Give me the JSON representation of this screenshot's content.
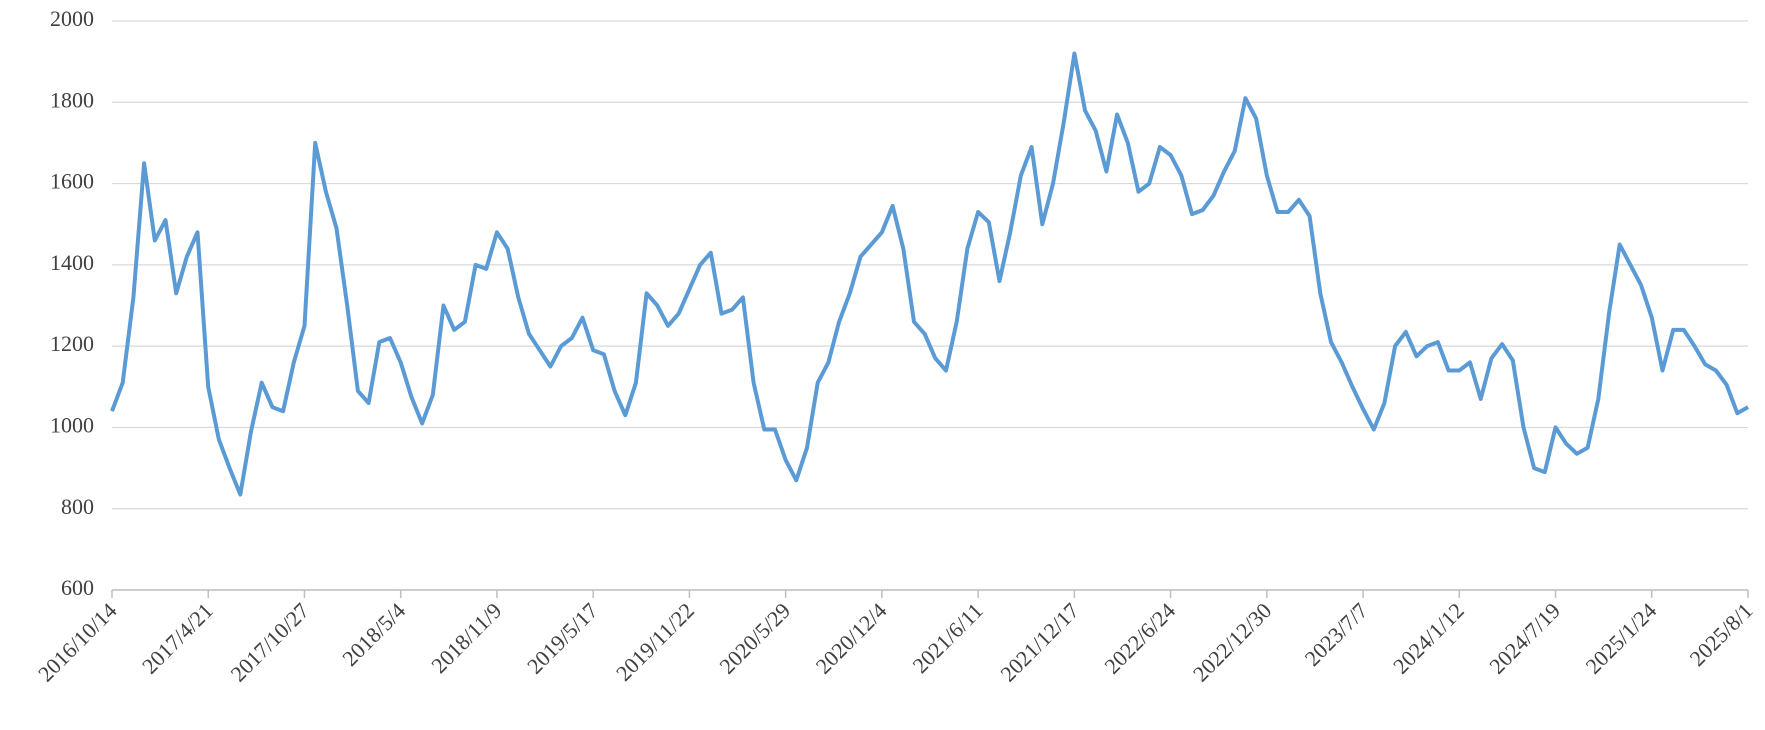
{
  "chart_data": {
    "type": "line",
    "categories": [
      "2016/10/14",
      null,
      null,
      null,
      null,
      null,
      null,
      null,
      null,
      "2017/4/21",
      null,
      null,
      null,
      null,
      null,
      null,
      null,
      null,
      "2017/10/27",
      null,
      null,
      null,
      null,
      null,
      null,
      null,
      null,
      "2018/5/4",
      null,
      null,
      null,
      null,
      null,
      null,
      null,
      null,
      "2018/11/9",
      null,
      null,
      null,
      null,
      null,
      null,
      null,
      null,
      "2019/5/17",
      null,
      null,
      null,
      null,
      null,
      null,
      null,
      null,
      "2019/11/22",
      null,
      null,
      null,
      null,
      null,
      null,
      null,
      null,
      "2020/5/29",
      null,
      null,
      null,
      null,
      null,
      null,
      null,
      null,
      "2020/12/4",
      null,
      null,
      null,
      null,
      null,
      null,
      null,
      null,
      "2021/6/11",
      null,
      null,
      null,
      null,
      null,
      null,
      null,
      null,
      "2021/12/17",
      null,
      null,
      null,
      null,
      null,
      null,
      null,
      null,
      "2022/6/24",
      null,
      null,
      null,
      null,
      null,
      null,
      null,
      null,
      "2022/12/30",
      null,
      null,
      null,
      null,
      null,
      null,
      null,
      null,
      "2023/7/7",
      null,
      null,
      null,
      null,
      null,
      null,
      null,
      null,
      "2024/1/12",
      null,
      null,
      null,
      null,
      null,
      null,
      null,
      null,
      "2024/7/19",
      null,
      null,
      null,
      null,
      null,
      null,
      null,
      null,
      "2025/1/24",
      null,
      null,
      null,
      null,
      null,
      null,
      null,
      null,
      "2025/8/1"
    ],
    "series": [
      {
        "color": "#5b9bd5",
        "values": [
          1040,
          1110,
          1320,
          1650,
          1460,
          1510,
          1330,
          1420,
          1480,
          1100,
          970,
          900,
          835,
          990,
          1110,
          1050,
          1040,
          1160,
          1250,
          1700,
          1580,
          1490,
          1300,
          1090,
          1060,
          1210,
          1220,
          1160,
          1075,
          1010,
          1080,
          1300,
          1240,
          1260,
          1400,
          1390,
          1480,
          1440,
          1320,
          1230,
          1190,
          1150,
          1200,
          1220,
          1270,
          1190,
          1180,
          1090,
          1030,
          1110,
          1330,
          1300,
          1250,
          1280,
          1340,
          1400,
          1430,
          1280,
          1290,
          1320,
          1110,
          995,
          995,
          920,
          870,
          950,
          1110,
          1160,
          1260,
          1330,
          1420,
          1450,
          1480,
          1545,
          1440,
          1260,
          1230,
          1170,
          1140,
          1260,
          1440,
          1530,
          1505,
          1360,
          1480,
          1620,
          1690,
          1500,
          1600,
          1750,
          1920,
          1780,
          1730,
          1630,
          1770,
          1700,
          1580,
          1600,
          1690,
          1670,
          1620,
          1525,
          1535,
          1570,
          1630,
          1680,
          1810,
          1760,
          1620,
          1530,
          1530,
          1560,
          1520,
          1330,
          1210,
          1160,
          1100,
          1045,
          995,
          1060,
          1200,
          1235,
          1175,
          1200,
          1210,
          1140,
          1140,
          1160,
          1070,
          1170,
          1205,
          1165,
          1000,
          900,
          890,
          1000,
          960,
          935,
          950,
          1070,
          1280,
          1450,
          1400,
          1350,
          1270,
          1140,
          1240,
          1240,
          1200,
          1155,
          1140,
          1105,
          1035,
          1050
        ]
      }
    ],
    "ylim": [
      600,
      2000
    ],
    "yticks": [
      600,
      800,
      1000,
      1200,
      1400,
      1600,
      1800,
      2000
    ],
    "grid": true
  }
}
